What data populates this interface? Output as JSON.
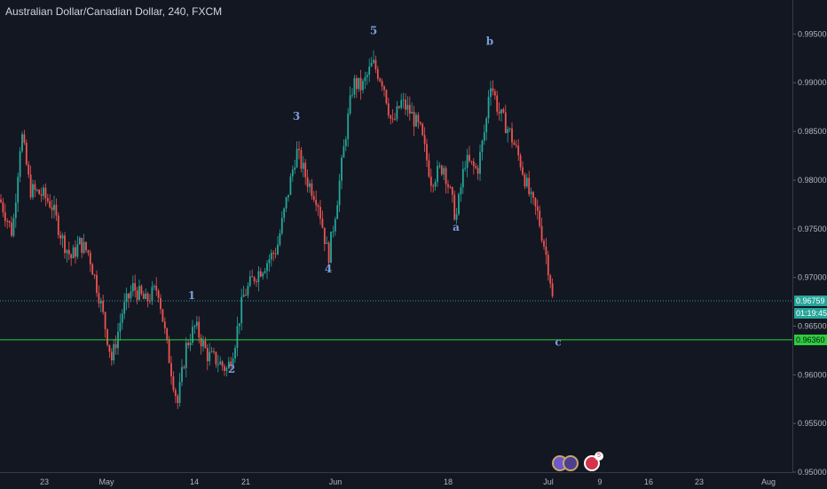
{
  "header": {
    "title": "Australian Dollar/Canadian Dollar, 240, FXCM"
  },
  "colors": {
    "bull": "#26a69a",
    "bear": "#ef5350",
    "wave_label": "#7b9fd8",
    "support": "#2ecc40",
    "dotted": "#26a69a",
    "bg": "#131722"
  },
  "chart_data": {
    "type": "candlestick",
    "title": "Australian Dollar/Canadian Dollar, 240, FXCM",
    "ylim": [
      0.95,
      0.9985
    ],
    "y_ticks": [
      "0.99500",
      "0.99000",
      "0.98500",
      "0.98000",
      "0.97500",
      "0.97000",
      "0.96500",
      "0.96000",
      "0.95500",
      "0.95000"
    ],
    "x_ticks": [
      "23",
      "May",
      "14",
      "21",
      "Jun",
      "18",
      "Jul",
      "9",
      "16",
      "23",
      "Aug"
    ],
    "path": [
      [
        0,
        0.978
      ],
      [
        14,
        0.9745
      ],
      [
        24,
        0.985
      ],
      [
        34,
        0.979
      ],
      [
        48,
        0.9785
      ],
      [
        58,
        0.9775
      ],
      [
        70,
        0.974
      ],
      [
        80,
        0.972
      ],
      [
        90,
        0.9735
      ],
      [
        100,
        0.9725
      ],
      [
        112,
        0.968
      ],
      [
        126,
        0.9615
      ],
      [
        138,
        0.9665
      ],
      [
        150,
        0.969
      ],
      [
        164,
        0.9675
      ],
      [
        178,
        0.969
      ],
      [
        188,
        0.963
      ],
      [
        200,
        0.957
      ],
      [
        210,
        0.963
      ],
      [
        220,
        0.965
      ],
      [
        234,
        0.962
      ],
      [
        244,
        0.9615
      ],
      [
        256,
        0.9605
      ],
      [
        264,
        0.963
      ],
      [
        274,
        0.968
      ],
      [
        286,
        0.97
      ],
      [
        300,
        0.9715
      ],
      [
        312,
        0.973
      ],
      [
        322,
        0.9775
      ],
      [
        334,
        0.983
      ],
      [
        346,
        0.98
      ],
      [
        358,
        0.978
      ],
      [
        370,
        0.972
      ],
      [
        380,
        0.978
      ],
      [
        390,
        0.985
      ],
      [
        398,
        0.99
      ],
      [
        408,
        0.9895
      ],
      [
        420,
        0.992
      ],
      [
        432,
        0.99
      ],
      [
        442,
        0.9855
      ],
      [
        452,
        0.988
      ],
      [
        462,
        0.987
      ],
      [
        474,
        0.985
      ],
      [
        486,
        0.98
      ],
      [
        500,
        0.9815
      ],
      [
        514,
        0.976
      ],
      [
        524,
        0.982
      ],
      [
        538,
        0.981
      ],
      [
        548,
        0.986
      ],
      [
        552,
        0.9905
      ],
      [
        562,
        0.987
      ],
      [
        574,
        0.985
      ],
      [
        586,
        0.982
      ],
      [
        598,
        0.978
      ],
      [
        606,
        0.9765
      ],
      [
        614,
        0.973
      ],
      [
        620,
        0.97
      ],
      [
        624,
        0.9666
      ]
    ],
    "levels": [
      {
        "price": 0.96759,
        "label": "0.96759",
        "style": "dotted"
      },
      {
        "price": 0.9636,
        "label": "0.96360",
        "style": "solid"
      }
    ],
    "countdown": "01:19:45",
    "wave_labels": [
      {
        "text": "5",
        "price": 0.995
      },
      {
        "text": "b",
        "price": 0.9939
      },
      {
        "text": "3",
        "price": 0.9862
      },
      {
        "text": "a",
        "price": 0.9748
      },
      {
        "text": "4",
        "price": 0.9705
      },
      {
        "text": "1",
        "price": 0.9678
      },
      {
        "text": "2",
        "price": 0.9602
      },
      {
        "text": "c",
        "price": 0.963
      }
    ],
    "event_badge": "5"
  }
}
